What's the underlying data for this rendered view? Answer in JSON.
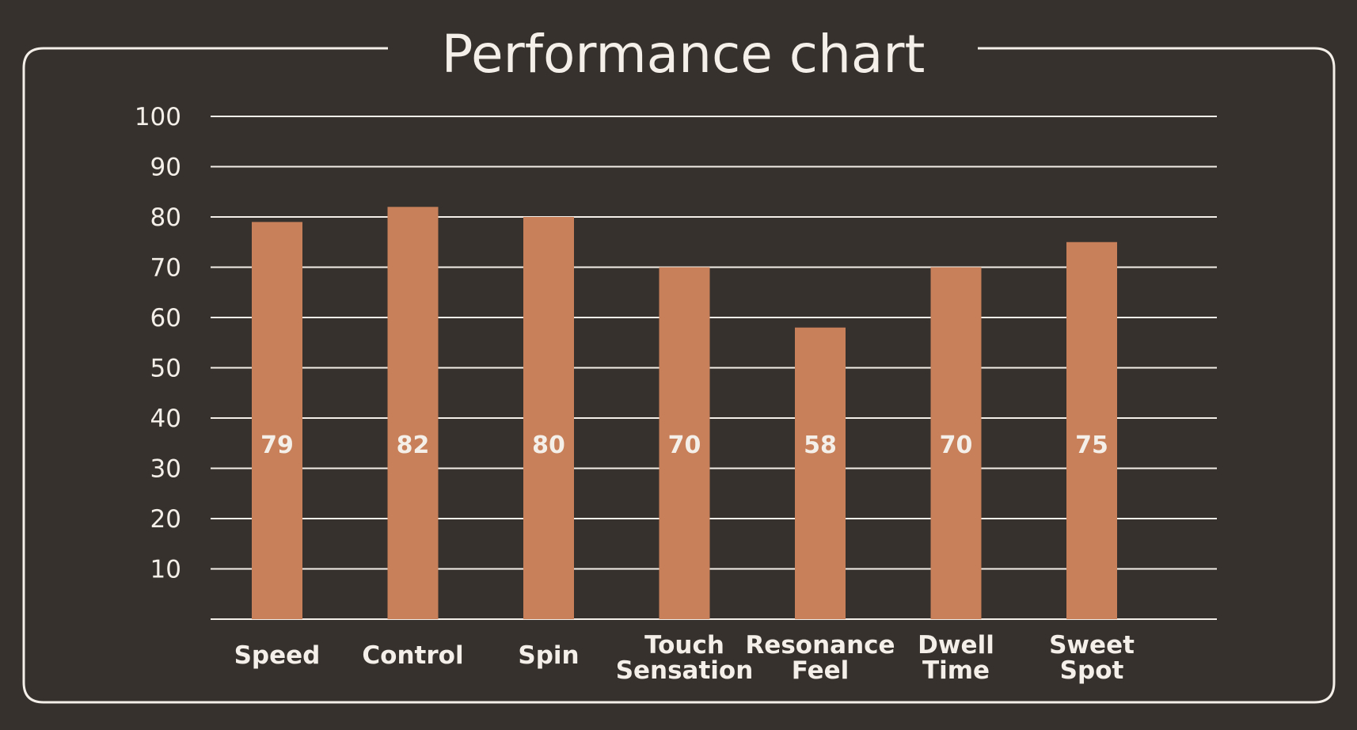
{
  "colors": {
    "background": "#36312c",
    "bar": "#c8805a",
    "text": "#f4efe8",
    "grid": "#f4efe8"
  },
  "chart_data": {
    "type": "bar",
    "title": "Performance chart",
    "xlabel": "",
    "ylabel": "",
    "categories": [
      [
        "Speed"
      ],
      [
        "Control"
      ],
      [
        "Spin"
      ],
      [
        "Touch",
        "Sensation"
      ],
      [
        "Resonance",
        "Feel"
      ],
      [
        "Dwell",
        "Time"
      ],
      [
        "Sweet",
        "Spot"
      ]
    ],
    "values": [
      79,
      82,
      80,
      70,
      58,
      70,
      75
    ],
    "ylim": [
      0,
      100
    ],
    "yticks": [
      10,
      20,
      30,
      40,
      50,
      60,
      70,
      80,
      90,
      100
    ],
    "grid": true,
    "legend": "none"
  }
}
